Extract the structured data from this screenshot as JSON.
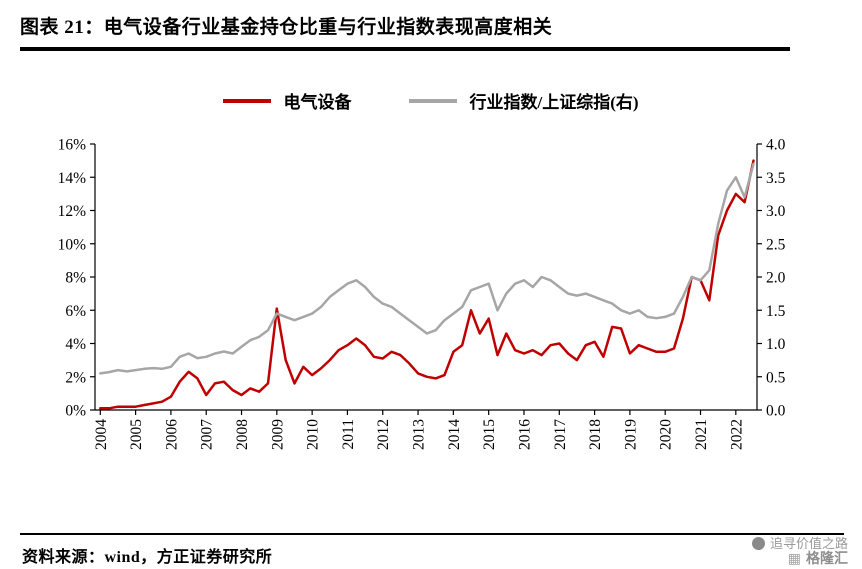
{
  "title": "图表 21：电气设备行业基金持仓比重与行业指数表现高度相关",
  "legend": [
    {
      "label": "电气设备",
      "color": "#c00000"
    },
    {
      "label": "行业指数/上证综指(右)",
      "color": "#a6a6a6"
    }
  ],
  "footer": {
    "source": "资料来源：wind，方正证券研究所"
  },
  "watermark": {
    "line1": "追寻价值之路",
    "line2": "格隆汇"
  },
  "chart_data": {
    "type": "line",
    "title": "电气设备行业基金持仓比重与行业指数表现高度相关",
    "x_domain": [
      2003.85,
      2022.6
    ],
    "x_ticks": {
      "values": [
        2004,
        2005,
        2006,
        2007,
        2008,
        2009,
        2010,
        2011,
        2012,
        2013,
        2014,
        2015,
        2016,
        2017,
        2018,
        2019,
        2020,
        2021,
        2022
      ],
      "labels": [
        "2004",
        "2005",
        "2006",
        "2007",
        "2008",
        "2009",
        "2010",
        "2011",
        "2012",
        "2013",
        "2014",
        "2015",
        "2016",
        "2017",
        "2018",
        "2019",
        "2020",
        "2021",
        "2022"
      ]
    },
    "left_axis": {
      "range": [
        0,
        16
      ],
      "tick_values": [
        0,
        2,
        4,
        6,
        8,
        10,
        12,
        14,
        16
      ],
      "tick_labels": [
        "0%",
        "2%",
        "4%",
        "6%",
        "8%",
        "10%",
        "12%",
        "14%",
        "16%"
      ]
    },
    "right_axis": {
      "range": [
        0,
        4
      ],
      "tick_values": [
        0,
        0.5,
        1,
        1.5,
        2,
        2.5,
        3,
        3.5,
        4
      ],
      "tick_labels": [
        "0.0",
        "0.5",
        "1.0",
        "1.5",
        "2.0",
        "2.5",
        "3.0",
        "3.5",
        "4.0"
      ]
    },
    "grid": false,
    "legend_position": "top",
    "series": [
      {
        "name": "电气设备",
        "axis": "left",
        "unit": "%",
        "color": "#c00000",
        "x_start": 2004,
        "x_step": 0.25,
        "values": [
          0.1,
          0.1,
          0.2,
          0.2,
          0.2,
          0.3,
          0.4,
          0.5,
          0.8,
          1.7,
          2.3,
          1.9,
          0.9,
          1.6,
          1.7,
          1.2,
          0.9,
          1.3,
          1.1,
          1.6,
          6.1,
          3.0,
          1.6,
          2.6,
          2.1,
          2.5,
          3.0,
          3.6,
          3.9,
          4.3,
          3.9,
          3.2,
          3.1,
          3.5,
          3.3,
          2.8,
          2.2,
          2.0,
          1.9,
          2.1,
          3.5,
          3.9,
          6.0,
          4.6,
          5.5,
          3.3,
          4.6,
          3.6,
          3.4,
          3.6,
          3.3,
          3.9,
          4.0,
          3.4,
          3.0,
          3.9,
          4.1,
          3.2,
          5.0,
          4.9,
          3.4,
          3.9,
          3.7,
          3.5,
          3.5,
          3.7,
          5.5,
          8.0,
          7.8,
          6.6,
          10.5,
          12.0,
          13.0,
          12.5,
          15.0
        ]
      },
      {
        "name": "行业指数/上证综指(右)",
        "axis": "right",
        "unit": "",
        "color": "#a6a6a6",
        "x_start": 2004,
        "x_step": 0.25,
        "values": [
          0.55,
          0.57,
          0.6,
          0.58,
          0.6,
          0.62,
          0.63,
          0.62,
          0.65,
          0.8,
          0.85,
          0.78,
          0.8,
          0.85,
          0.88,
          0.85,
          0.95,
          1.05,
          1.1,
          1.2,
          1.45,
          1.4,
          1.35,
          1.4,
          1.45,
          1.55,
          1.7,
          1.8,
          1.9,
          1.95,
          1.85,
          1.7,
          1.6,
          1.55,
          1.45,
          1.35,
          1.25,
          1.15,
          1.2,
          1.35,
          1.45,
          1.55,
          1.8,
          1.85,
          1.9,
          1.5,
          1.75,
          1.9,
          1.95,
          1.85,
          2.0,
          1.95,
          1.85,
          1.75,
          1.72,
          1.75,
          1.7,
          1.65,
          1.6,
          1.5,
          1.45,
          1.5,
          1.4,
          1.38,
          1.4,
          1.45,
          1.7,
          2.0,
          1.95,
          2.1,
          2.8,
          3.3,
          3.5,
          3.2,
          3.7
        ]
      }
    ]
  }
}
